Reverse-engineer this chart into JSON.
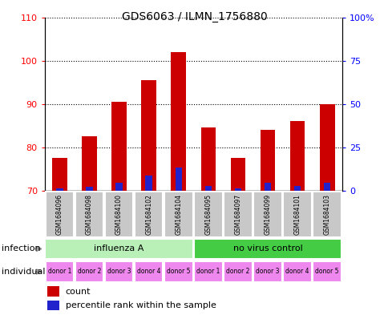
{
  "title": "GDS6063 / ILMN_1756880",
  "samples": [
    "GSM1684096",
    "GSM1684098",
    "GSM1684100",
    "GSM1684102",
    "GSM1684104",
    "GSM1684095",
    "GSM1684097",
    "GSM1684099",
    "GSM1684101",
    "GSM1684103"
  ],
  "count_values": [
    77.5,
    82.5,
    90.5,
    95.5,
    102.0,
    84.5,
    77.5,
    84.0,
    86.0,
    90.0
  ],
  "percentile_values": [
    1.5,
    2.0,
    4.5,
    8.5,
    13.5,
    2.5,
    1.5,
    4.5,
    2.5,
    4.5
  ],
  "ylim_left": [
    70,
    110
  ],
  "ylim_right": [
    0,
    100
  ],
  "yticks_left": [
    70,
    80,
    90,
    100,
    110
  ],
  "yticks_right": [
    0,
    25,
    50,
    75,
    100
  ],
  "ytick_labels_right": [
    "0",
    "25",
    "50",
    "75",
    "100%"
  ],
  "infection_groups": [
    {
      "label": "influenza A",
      "start": 0,
      "end": 5,
      "color": "#b8f0b8"
    },
    {
      "label": "no virus control",
      "start": 5,
      "end": 10,
      "color": "#44cc44"
    }
  ],
  "individual_labels": [
    "donor 1",
    "donor 2",
    "donor 3",
    "donor 4",
    "donor 5",
    "donor 1",
    "donor 2",
    "donor 3",
    "donor 4",
    "donor 5"
  ],
  "individual_color": "#ee88ee",
  "bar_color_red": "#cc0000",
  "bar_color_blue": "#2222cc",
  "bar_width": 0.5,
  "background_plot": "#ffffff",
  "sample_box_color": "#c8c8c8",
  "legend_count_label": "count",
  "legend_percentile_label": "percentile rank within the sample"
}
